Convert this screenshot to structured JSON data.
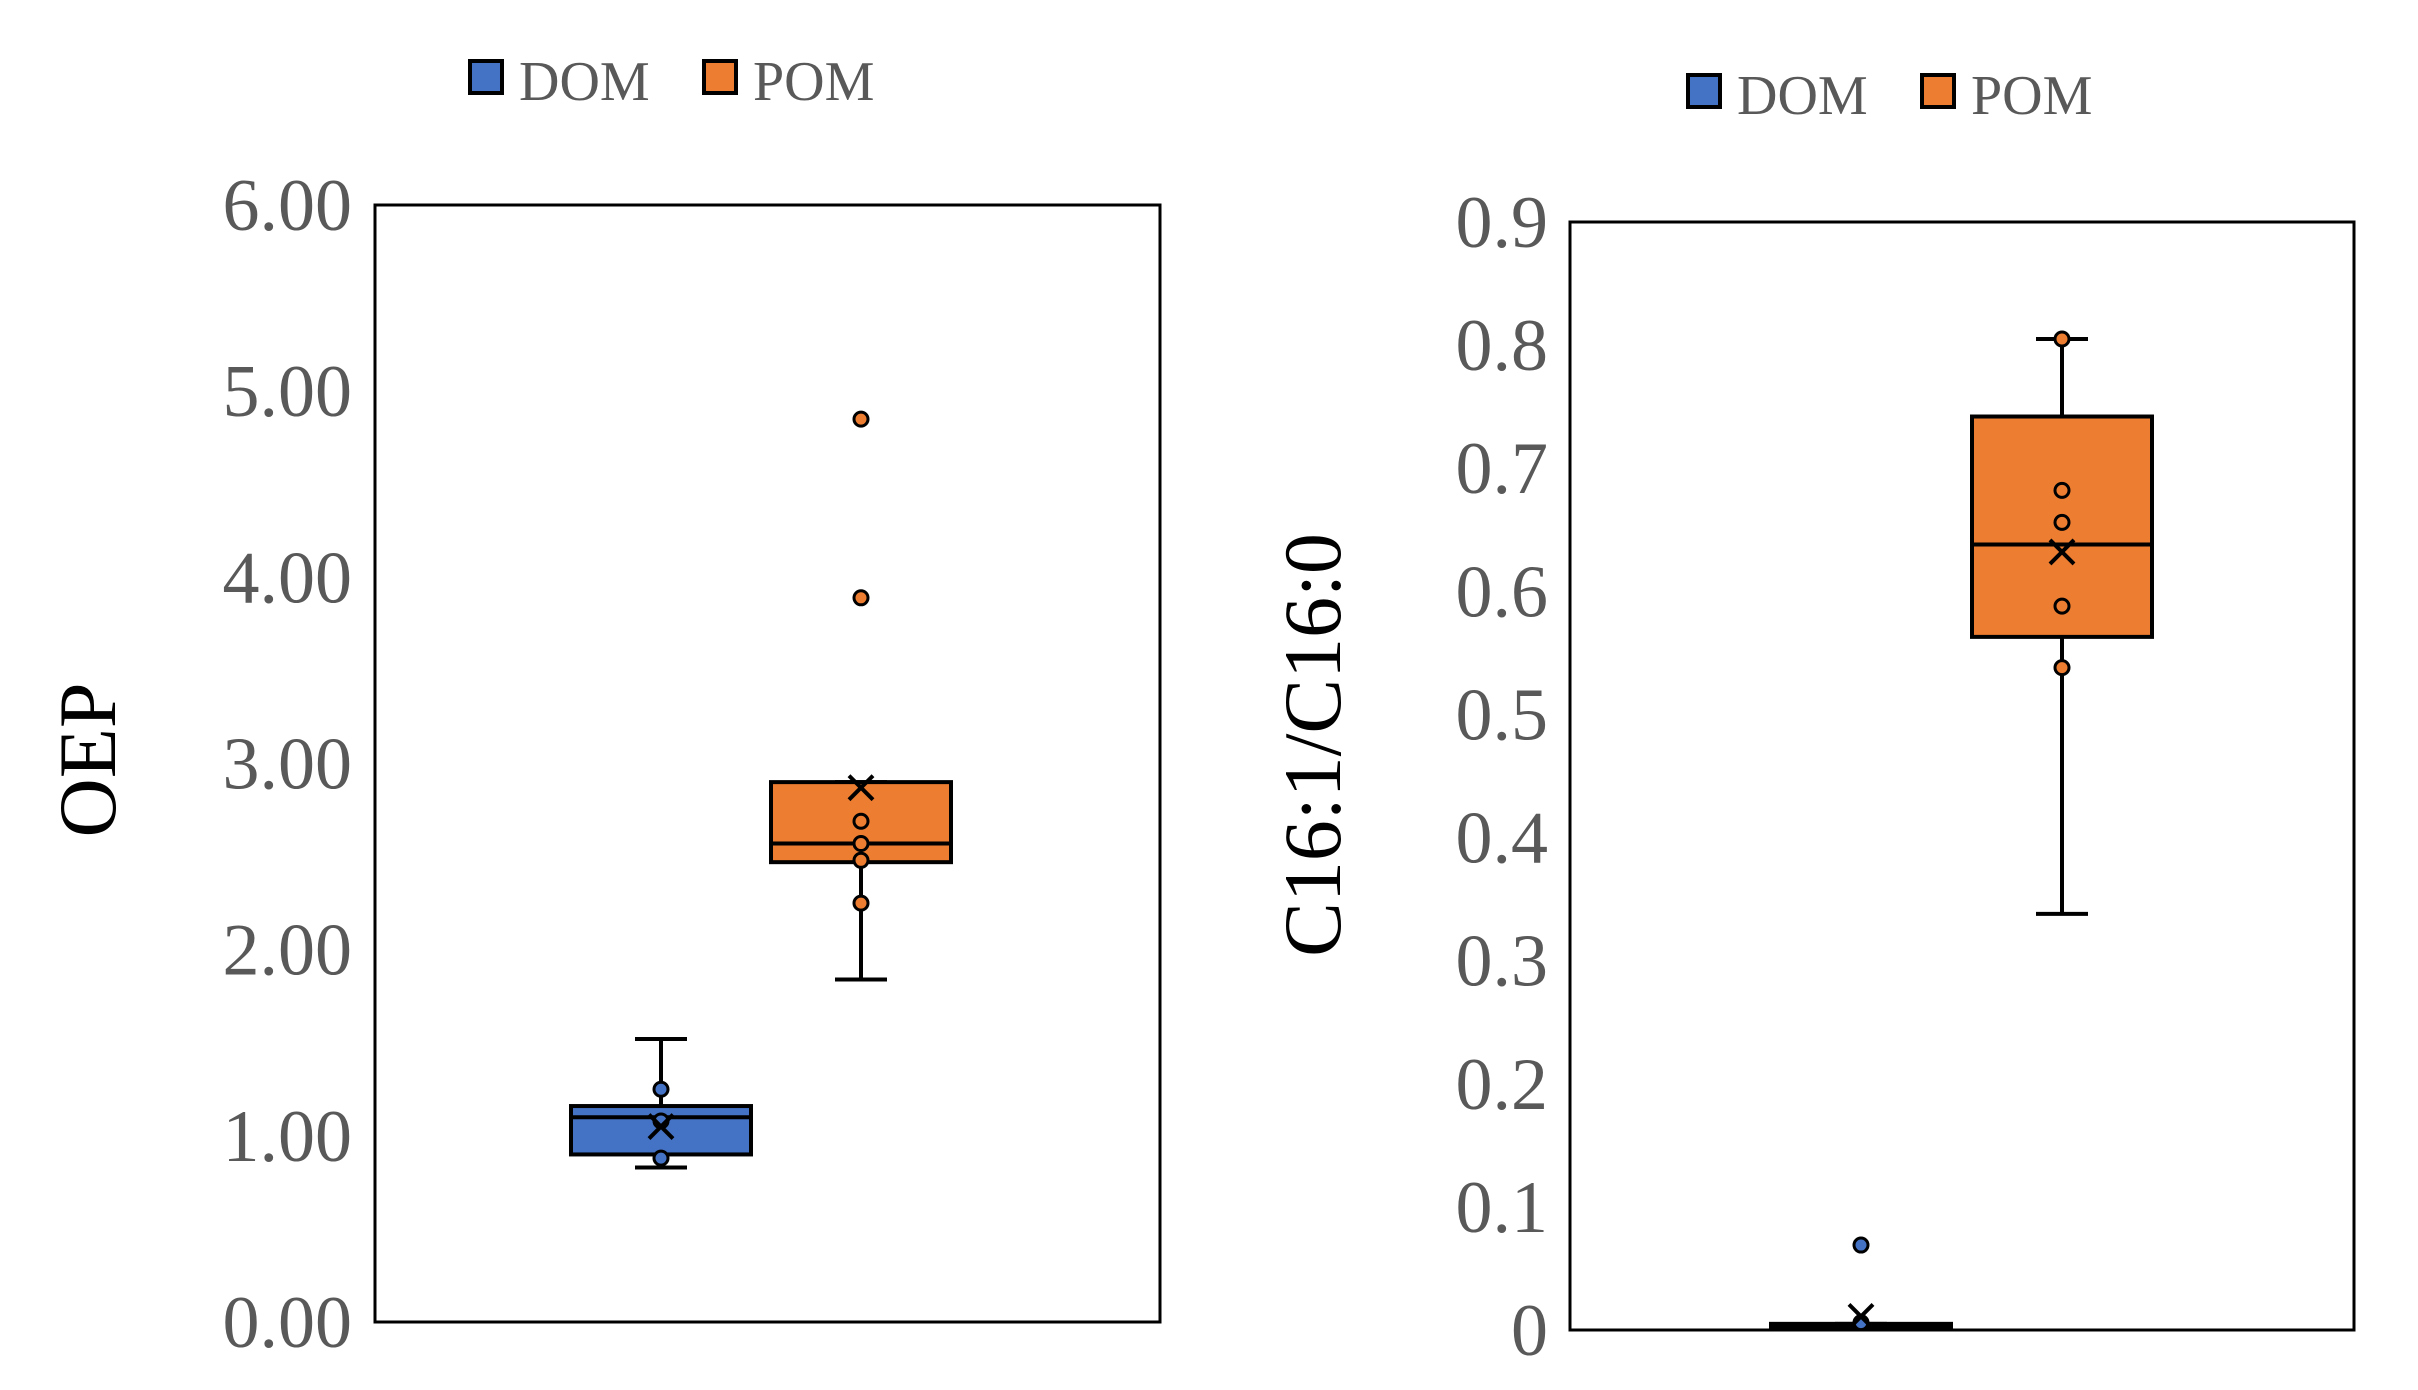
{
  "chart_data": [
    {
      "type": "box",
      "ylabel": "OEP",
      "ylim": [
        0,
        6
      ],
      "yticks": [
        "0.00",
        "1.00",
        "2.00",
        "3.00",
        "4.00",
        "5.00",
        "6.00"
      ],
      "legend": {
        "placement": "top",
        "entries": [
          "DOM",
          "POM"
        ]
      },
      "series": [
        {
          "name": "DOM",
          "color": "#4472c4",
          "whisker_low": 0.83,
          "q1": 0.9,
          "median": 1.1,
          "q3": 1.16,
          "whisker_high": 1.52,
          "mean": 1.05,
          "points": [
            1.25,
            1.08,
            0.88
          ]
        },
        {
          "name": "POM",
          "color": "#ed7d31",
          "whisker_low": 1.84,
          "q1": 2.47,
          "median": 2.57,
          "q3": 2.9,
          "whisker_high": 2.9,
          "mean": 2.87,
          "points": [
            4.85,
            3.89,
            2.69,
            2.57,
            2.48,
            2.25
          ]
        }
      ]
    },
    {
      "type": "box",
      "ylabel": "C16:1/C16:0",
      "ylim": [
        0,
        0.9
      ],
      "yticks": [
        "0",
        "0.1",
        "0.2",
        "0.3",
        "0.4",
        "0.5",
        "0.6",
        "0.7",
        "0.8",
        "0.9"
      ],
      "legend": {
        "placement": "top",
        "entries": [
          "DOM",
          "POM"
        ]
      },
      "series": [
        {
          "name": "DOM",
          "color": "#4472c4",
          "whisker_low": 0.004,
          "q1": 0.004,
          "median": 0.004,
          "q3": 0.005,
          "whisker_high": 0.005,
          "mean": 0.011,
          "points": [
            0.069,
            0.006
          ]
        },
        {
          "name": "POM",
          "color": "#ed7d31",
          "whisker_low": 0.338,
          "q1": 0.563,
          "median": 0.638,
          "q3": 0.742,
          "whisker_high": 0.805,
          "mean": 0.632,
          "points": [
            0.805,
            0.682,
            0.656,
            0.588,
            0.538
          ]
        }
      ]
    }
  ]
}
